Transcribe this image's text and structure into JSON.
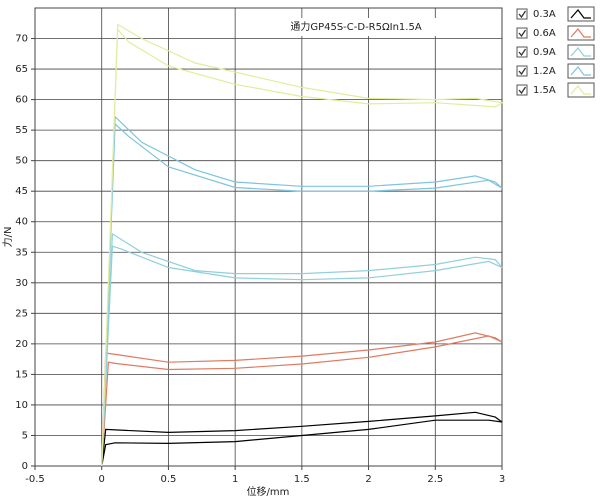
{
  "chart_data": {
    "type": "line",
    "title": "通力GP45S-C-D-R5ΩIn1.5A",
    "x_label": "位移/mm",
    "y_label": "力/N",
    "xlim": [
      -0.5,
      3
    ],
    "ylim": [
      0,
      75
    ],
    "xticks": [
      -0.5,
      0,
      0.5,
      1,
      1.5,
      2,
      2.5,
      3
    ],
    "yticks": [
      0,
      5,
      10,
      15,
      20,
      25,
      30,
      35,
      40,
      45,
      50,
      55,
      60,
      65,
      70
    ],
    "grid": true,
    "legend": "right",
    "series": [
      {
        "name": "0.3A",
        "color": "#000000",
        "x": [
          0,
          0.03,
          0.5,
          1,
          1.5,
          2,
          2.5,
          2.8,
          2.95,
          3,
          2.9,
          2.5,
          2,
          1.5,
          1,
          0.5,
          0.1,
          0.03,
          0
        ],
        "values": [
          0,
          6,
          5.5,
          5.8,
          6.5,
          7.3,
          8.2,
          8.8,
          8,
          7.2,
          7.5,
          7.5,
          6,
          5,
          4,
          3.7,
          3.8,
          3.5,
          0
        ]
      },
      {
        "name": "0.6A",
        "color": "#e07a62",
        "x": [
          0,
          0.03,
          0.5,
          1,
          1.5,
          2,
          2.5,
          2.8,
          2.95,
          3,
          2.9,
          2.5,
          2,
          1.5,
          1,
          0.5,
          0.1,
          0.05,
          0
        ],
        "values": [
          0,
          18.5,
          17,
          17.3,
          18,
          19,
          20.3,
          21.8,
          21,
          20.3,
          21.3,
          19.5,
          17.8,
          16.7,
          16,
          15.8,
          16.8,
          17,
          0
        ]
      },
      {
        "name": "0.9A",
        "color": "#8fd0dc",
        "x": [
          0,
          0.08,
          0.3,
          0.7,
          1,
          1.5,
          2,
          2.5,
          2.8,
          2.95,
          3,
          2.9,
          2.5,
          2,
          1.5,
          1,
          0.5,
          0.15,
          0.08,
          0
        ],
        "values": [
          0,
          38,
          35,
          32,
          31.5,
          31.5,
          32,
          33,
          34.2,
          33.8,
          32.5,
          33.5,
          32,
          30.8,
          30.5,
          30.8,
          32.5,
          35.5,
          36,
          0
        ]
      },
      {
        "name": "1.2A",
        "color": "#7ec4e0",
        "x": [
          0,
          0.1,
          0.3,
          0.7,
          1,
          1.5,
          2,
          2.5,
          2.8,
          2.95,
          3,
          2.9,
          2.5,
          2,
          1.5,
          1,
          0.5,
          0.2,
          0.1,
          0
        ],
        "values": [
          0,
          57.2,
          53,
          48.5,
          46.5,
          45.8,
          45.8,
          46.5,
          47.5,
          46.5,
          45.5,
          46.8,
          45.5,
          45,
          45,
          45.6,
          49,
          54,
          56,
          0
        ]
      },
      {
        "name": "1.5A",
        "color": "#e3ec9a",
        "x": [
          0,
          0.12,
          0.3,
          0.7,
          1,
          1.5,
          2,
          2.5,
          2.8,
          3,
          2.95,
          2.5,
          2,
          1.5,
          1,
          0.5,
          0.2,
          0.12,
          0
        ],
        "values": [
          0,
          72.3,
          70,
          66,
          64.5,
          62,
          60.2,
          60,
          60.2,
          59.5,
          58.8,
          59.5,
          59.3,
          60.5,
          62.5,
          65.5,
          69.5,
          71.5,
          0
        ]
      }
    ]
  }
}
